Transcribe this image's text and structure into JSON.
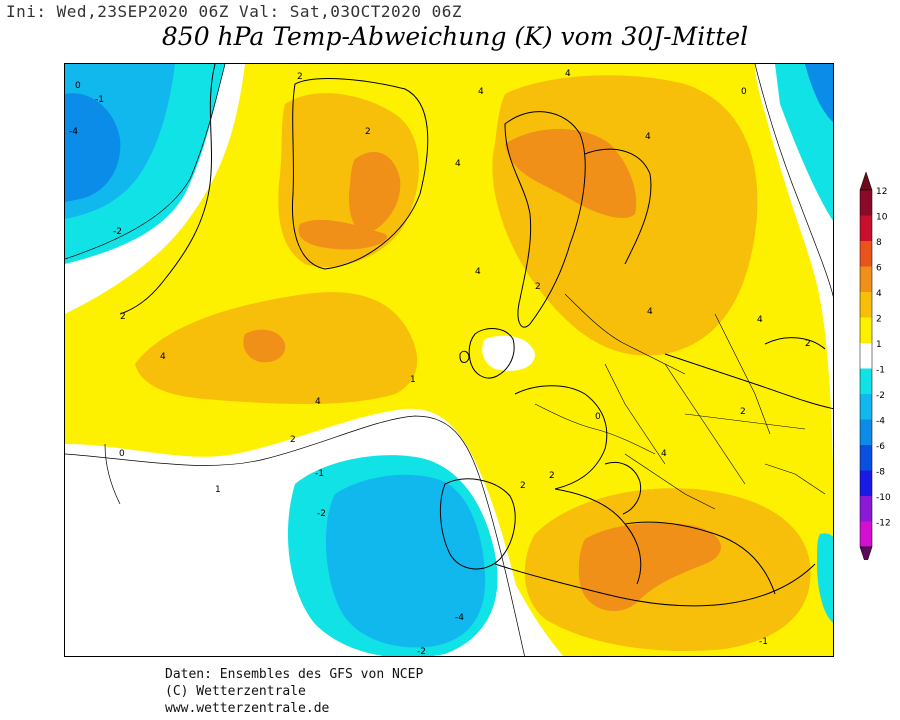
{
  "header": {
    "init_line": "Ini: Wed,23SEP2020 06Z Val: Sat,03OCT2020 06Z",
    "title": "850 hPa Temp-Abweichung (K) vom 30J-Mittel"
  },
  "credits": {
    "line1": "Daten: Ensembles des GFS von NCEP",
    "line2": "(C) Wetterzentrale",
    "line3": "www.wetterzentrale.de"
  },
  "legend": {
    "entries": [
      {
        "label": "12",
        "color": "#8b0a2a"
      },
      {
        "label": "10",
        "color": "#c8102e"
      },
      {
        "label": "8",
        "color": "#e8541a"
      },
      {
        "label": "6",
        "color": "#f09018"
      },
      {
        "label": "4",
        "color": "#f7bf0a"
      },
      {
        "label": "2",
        "color": "#fdf100"
      },
      {
        "label": "1",
        "color": "#ffffff"
      },
      {
        "label": "-1",
        "color": "#10e2e6"
      },
      {
        "label": "-2",
        "color": "#10b8ee"
      },
      {
        "label": "-4",
        "color": "#0a8ce8"
      },
      {
        "label": "-6",
        "color": "#0a50e0"
      },
      {
        "label": "-8",
        "color": "#1a1ae6"
      },
      {
        "label": "-10",
        "color": "#8a1ad8"
      },
      {
        "label": "-12",
        "color": "#d410d0"
      }
    ],
    "top_color": "#6a0a1a",
    "bottom_color": "#5a0a5a"
  },
  "map": {
    "colors": {
      "white": "#ffffff",
      "cyan": "#10e2e6",
      "light_blue": "#10b8ee",
      "blue": "#0a8ce8",
      "yellow": "#fdf100",
      "gold": "#f7bf0a",
      "orange": "#f09018",
      "line": "#000000"
    },
    "contour_labels": [
      "-1",
      "0",
      "1",
      "2",
      "4",
      "-2",
      "-4"
    ]
  }
}
